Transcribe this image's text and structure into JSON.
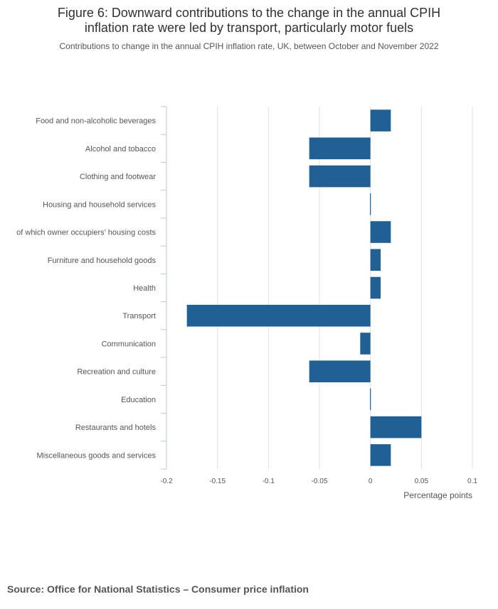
{
  "title_line1": "Figure 6: Downward contributions to the change in the annual CPIH",
  "title_line2": "inflation rate were led by transport, particularly motor fuels",
  "subtitle": "Contributions to change in the annual CPIH inflation rate, UK, between October and November 2022",
  "source": "Source: Office for National Statistics – Consumer price inflation",
  "colors": {
    "bar": "#206095",
    "grid": "#e0e0e0",
    "axis": "#bfc7d4",
    "text": "#555555"
  },
  "chart_data": {
    "type": "bar",
    "orientation": "horizontal",
    "xlabel": "Percentage points",
    "xlim": [
      -0.2,
      0.1
    ],
    "xticks": [
      -0.2,
      -0.15,
      -0.1,
      -0.05,
      0,
      0.05,
      0.1
    ],
    "xtick_labels": [
      "-0.2",
      "-0.15",
      "-0.1",
      "-0.05",
      "0",
      "0.05",
      "0.1"
    ],
    "categories": [
      "Food and non-alcoholic beverages",
      "Alcohol and tobacco",
      "Clothing and footwear",
      "Housing and household services",
      "of which owner occupiers’ housing costs",
      "Furniture and household goods",
      "Health",
      "Transport",
      "Communication",
      "Recreation and culture",
      "Education",
      "Restaurants and hotels",
      "Miscellaneous goods and services"
    ],
    "values": [
      0.02,
      -0.06,
      -0.06,
      0.0,
      0.02,
      0.01,
      0.01,
      -0.18,
      -0.01,
      -0.06,
      0.0,
      0.05,
      0.02
    ]
  }
}
